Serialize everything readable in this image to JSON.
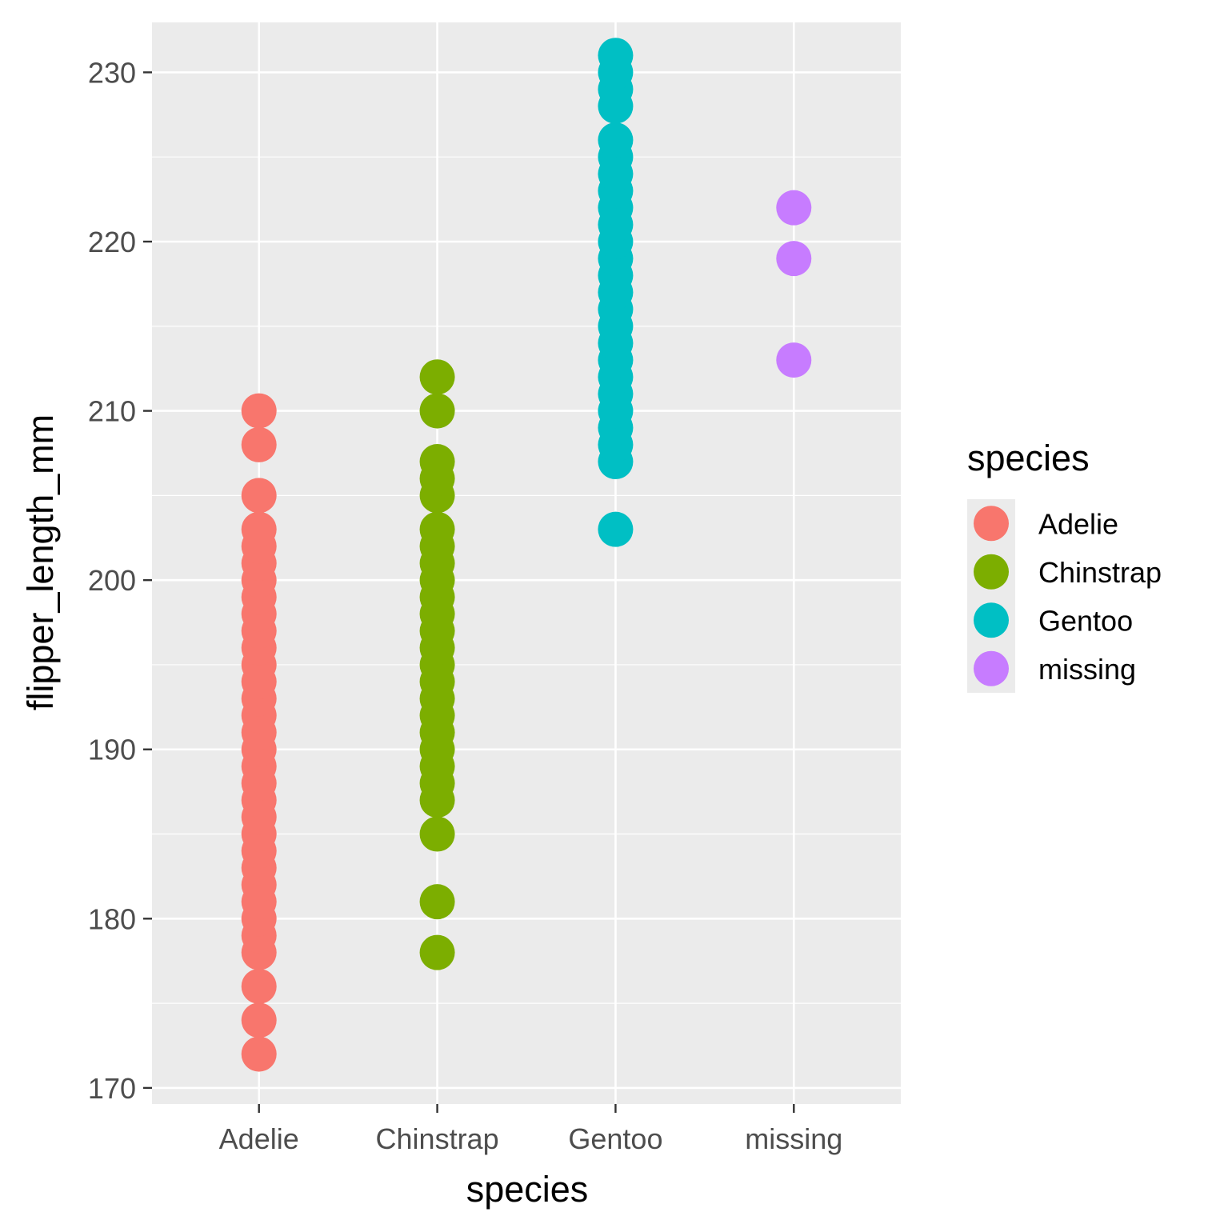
{
  "chart_data": {
    "type": "scatter",
    "title": "",
    "xlabel": "species",
    "ylabel": "flipper_length_mm",
    "categories": [
      "Adelie",
      "Chinstrap",
      "Gentoo",
      "missing"
    ],
    "yticks": [
      "170",
      "180",
      "190",
      "200",
      "210",
      "220",
      "230"
    ],
    "ylim": [
      169.05,
      232.95
    ],
    "grid": true,
    "legend": {
      "title": "species",
      "placement": "right",
      "entries": [
        "Adelie",
        "Chinstrap",
        "Gentoo",
        "missing"
      ]
    },
    "colors": {
      "Adelie": "#F8766D",
      "Chinstrap": "#7CAE00",
      "Gentoo": "#00BFC4",
      "missing": "#C77CFF",
      "panel": "#EBEBEB",
      "grid": "#FFFFFF"
    },
    "series": [
      {
        "name": "Adelie",
        "values": [
          172,
          174,
          176,
          178,
          179,
          180,
          181,
          182,
          183,
          184,
          185,
          186,
          187,
          188,
          189,
          190,
          191,
          192,
          193,
          194,
          195,
          196,
          197,
          198,
          199,
          200,
          201,
          202,
          203,
          205,
          208,
          210
        ]
      },
      {
        "name": "Chinstrap",
        "values": [
          178,
          181,
          185,
          187,
          188,
          189,
          190,
          191,
          192,
          193,
          194,
          195,
          196,
          197,
          198,
          199,
          200,
          201,
          202,
          203,
          205,
          206,
          207,
          210,
          212
        ]
      },
      {
        "name": "Gentoo",
        "values": [
          203,
          207,
          208,
          209,
          210,
          211,
          212,
          213,
          214,
          215,
          216,
          217,
          218,
          219,
          220,
          221,
          222,
          223,
          224,
          225,
          226,
          228,
          229,
          230,
          231
        ]
      },
      {
        "name": "missing",
        "values": [
          213,
          219,
          222
        ]
      }
    ]
  }
}
